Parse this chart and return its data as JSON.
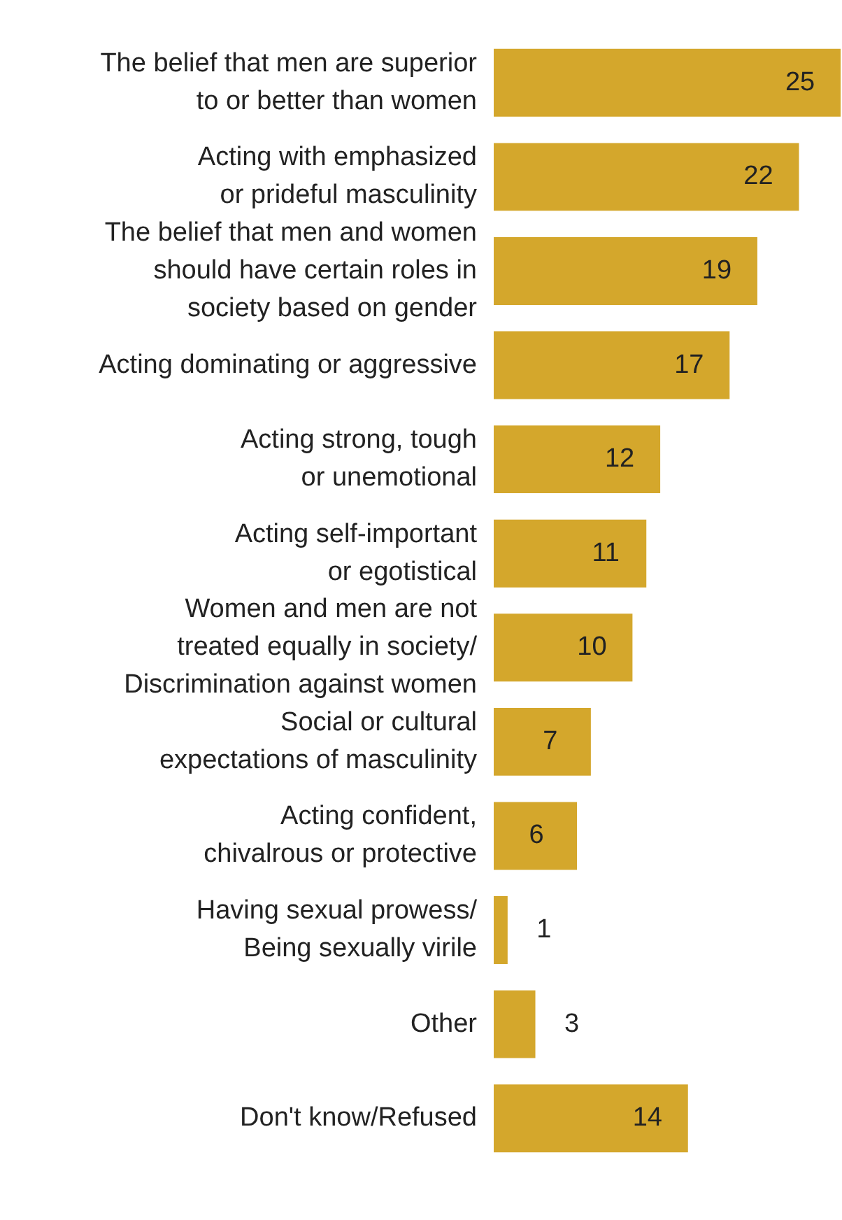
{
  "chart_data": {
    "type": "bar",
    "orientation": "horizontal",
    "categories": [
      "The belief that men are superior to or better than women",
      "Acting with emphasized or prideful masculinity",
      "The belief that men and women should have certain roles in society based on gender",
      "Acting dominating or aggressive",
      "Acting strong, tough or unemotional",
      "Acting self-important or egotistical",
      "Women and men are not treated equally in society/ Discrimination against women",
      "Social or cultural expectations of masculinity",
      "Acting confident, chivalrous or protective",
      "Having sexual prowess/ Being sexually virile",
      "Other",
      "Don't know/Refused"
    ],
    "values": [
      25,
      22,
      19,
      17,
      12,
      11,
      10,
      7,
      6,
      1,
      3,
      14
    ],
    "color": "#d4a72c",
    "xlim": [
      0,
      25
    ],
    "tick_labels": "y",
    "data_labels": true,
    "grid": false,
    "legend": false
  }
}
